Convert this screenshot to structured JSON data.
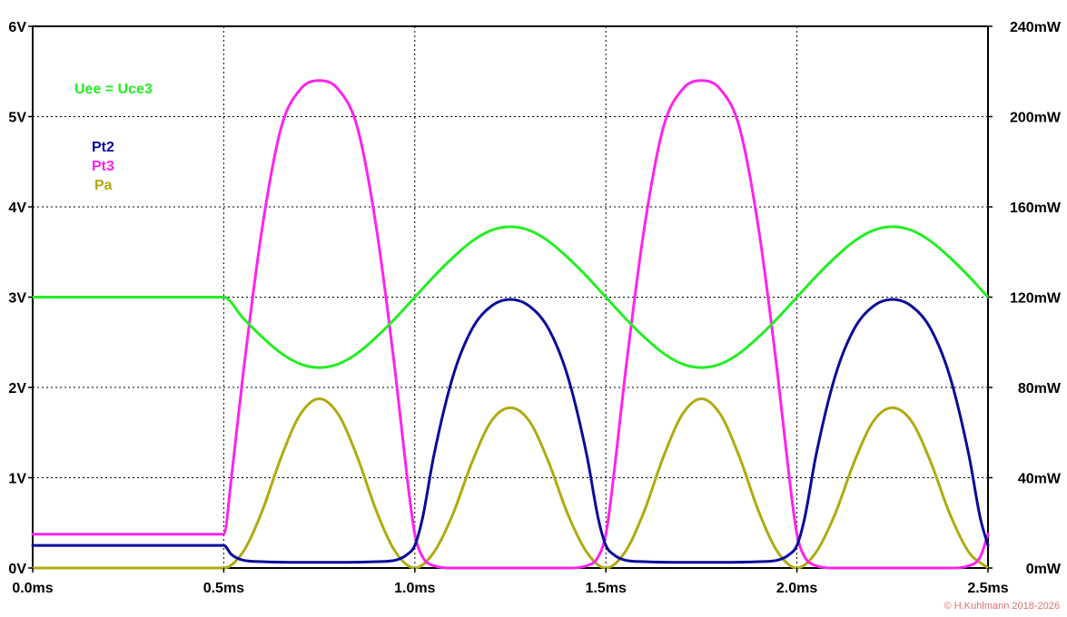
{
  "chart_data": {
    "type": "line",
    "title": "",
    "xlabel": "",
    "ylabel": "",
    "xlim": [
      0,
      2.5
    ],
    "ylim_left": [
      0,
      6
    ],
    "ylim_right": [
      0,
      240
    ],
    "grid": true,
    "x_ticks": [
      "0.0ms",
      "0.5ms",
      "1.0ms",
      "1.5ms",
      "2.0ms",
      "2.5ms"
    ],
    "y_left_ticks": [
      "0V",
      "1V",
      "2V",
      "3V",
      "4V",
      "5V",
      "6V"
    ],
    "y_right_ticks": [
      "0mW",
      "40mW",
      "80mW",
      "120mW",
      "160mW",
      "200mW",
      "240mW"
    ],
    "series": [
      {
        "name": "Uee = Uce3",
        "axis": "left",
        "color": "#22ee22",
        "x": [
          0,
          0.5,
          0.55,
          0.6,
          0.65,
          0.7,
          0.75,
          0.8,
          0.85,
          0.9,
          0.95,
          1.0,
          1.05,
          1.1,
          1.15,
          1.2,
          1.25,
          1.3,
          1.35,
          1.4,
          1.45,
          1.5,
          1.55,
          1.6,
          1.65,
          1.7,
          1.75,
          1.8,
          1.85,
          1.9,
          1.95,
          2.0,
          2.05,
          2.1,
          2.15,
          2.2,
          2.25,
          2.3,
          2.35,
          2.4,
          2.45,
          2.5
        ],
        "values": [
          3.0,
          3.0,
          2.77,
          2.56,
          2.38,
          2.26,
          2.22,
          2.26,
          2.38,
          2.56,
          2.77,
          3.0,
          3.23,
          3.44,
          3.62,
          3.74,
          3.78,
          3.74,
          3.62,
          3.44,
          3.23,
          3.0,
          2.77,
          2.56,
          2.38,
          2.26,
          2.22,
          2.26,
          2.38,
          2.56,
          2.77,
          3.0,
          3.23,
          3.44,
          3.62,
          3.74,
          3.78,
          3.74,
          3.62,
          3.44,
          3.23,
          3.0
        ]
      },
      {
        "name": "Pt2",
        "axis": "right",
        "color": "#0a0a9a",
        "x": [
          0,
          0.5,
          0.52,
          0.55,
          0.6,
          0.7,
          0.8,
          0.9,
          0.95,
          0.98,
          1.0,
          1.02,
          1.05,
          1.1,
          1.15,
          1.2,
          1.25,
          1.3,
          1.35,
          1.4,
          1.45,
          1.48,
          1.5,
          1.52,
          1.55,
          1.6,
          1.7,
          1.8,
          1.9,
          1.95,
          1.98,
          2.0,
          2.02,
          2.05,
          2.1,
          2.15,
          2.2,
          2.25,
          2.3,
          2.35,
          2.4,
          2.45,
          2.48,
          2.5
        ],
        "values": [
          10,
          10,
          6,
          3.5,
          2.8,
          2.5,
          2.5,
          2.8,
          3.5,
          6,
          10,
          22,
          50,
          85,
          106,
          116,
          119,
          116,
          106,
          85,
          50,
          22,
          10,
          6,
          3.5,
          2.8,
          2.5,
          2.5,
          2.8,
          3.5,
          6,
          10,
          22,
          50,
          85,
          106,
          116,
          119,
          116,
          106,
          85,
          50,
          22,
          10
        ]
      },
      {
        "name": "Pt3",
        "axis": "right",
        "color": "#ff22ee",
        "x": [
          0,
          0.5,
          0.52,
          0.55,
          0.6,
          0.65,
          0.7,
          0.75,
          0.8,
          0.85,
          0.9,
          0.95,
          0.98,
          1.0,
          1.02,
          1.05,
          1.1,
          1.2,
          1.3,
          1.4,
          1.45,
          1.48,
          1.5,
          1.52,
          1.55,
          1.6,
          1.65,
          1.7,
          1.75,
          1.8,
          1.85,
          1.9,
          1.95,
          1.98,
          2.0,
          2.02,
          2.05,
          2.1,
          2.2,
          2.3,
          2.4,
          2.45,
          2.48,
          2.5
        ],
        "values": [
          15,
          15,
          40,
          85,
          150,
          195,
          212,
          216,
          212,
          195,
          150,
          85,
          40,
          15,
          5,
          1,
          0,
          0,
          0,
          0,
          1,
          5,
          15,
          40,
          85,
          150,
          195,
          212,
          216,
          212,
          195,
          150,
          85,
          40,
          15,
          5,
          1,
          0,
          0,
          0,
          0,
          1,
          5,
          15
        ]
      },
      {
        "name": "Pa",
        "axis": "right",
        "color": "#b0aa10",
        "x": [
          0,
          0.5,
          0.55,
          0.6,
          0.65,
          0.7,
          0.75,
          0.8,
          0.85,
          0.9,
          0.95,
          1.0,
          1.05,
          1.1,
          1.15,
          1.2,
          1.25,
          1.3,
          1.35,
          1.4,
          1.45,
          1.5,
          1.55,
          1.6,
          1.65,
          1.7,
          1.75,
          1.8,
          1.85,
          1.9,
          1.95,
          2.0,
          2.05,
          2.1,
          2.15,
          2.2,
          2.25,
          2.3,
          2.35,
          2.4,
          2.45,
          2.5
        ],
        "values": [
          0,
          0,
          7,
          25,
          49,
          68,
          75,
          68,
          49,
          25,
          7,
          0,
          7,
          24,
          47,
          65,
          71,
          65,
          47,
          24,
          7,
          0,
          7,
          25,
          49,
          68,
          75,
          68,
          49,
          25,
          7,
          0,
          7,
          24,
          47,
          65,
          71,
          65,
          47,
          24,
          7,
          0
        ]
      }
    ]
  },
  "legend": {
    "uee_label": "Uee = Uce3",
    "pt2_label": "Pt2",
    "pt3_label": "Pt3",
    "pa_label": "Pa",
    "uee_color": "#22ee22",
    "pt2_color": "#0a0a9a",
    "pt3_color": "#ff22ee",
    "pa_color": "#b0aa10"
  },
  "copyright": "© H.Kuhlmann 2018-2026"
}
